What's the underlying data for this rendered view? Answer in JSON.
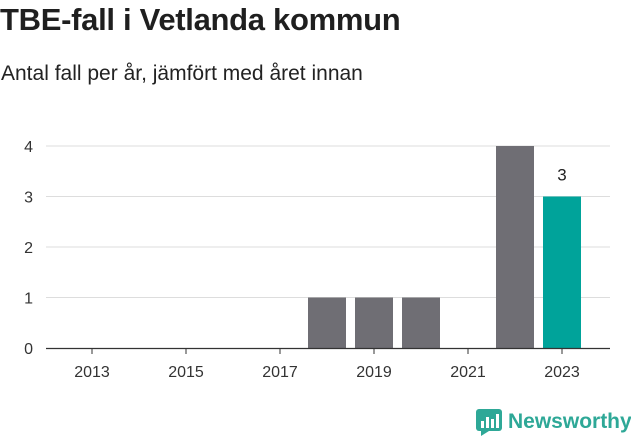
{
  "header": {
    "title": "TBE-fall i Vetlanda kommun",
    "subtitle": "Antal fall per år, jämfört med året innan"
  },
  "brand": {
    "name": "Newsworthy",
    "icon": "newsworthy-logo-icon"
  },
  "colors": {
    "bar": "#6f6e74",
    "highlight": "#00a39a",
    "grid": "#dddddd",
    "axis": "#333333",
    "brand": "#2ea897"
  },
  "chart_data": {
    "type": "bar",
    "title": "TBE-fall i Vetlanda kommun",
    "subtitle": "Antal fall per år, jämfört med året innan",
    "categories": [
      "2013",
      "2014",
      "2015",
      "2016",
      "2017",
      "2018",
      "2019",
      "2020",
      "2021",
      "2022",
      "2023"
    ],
    "values": [
      0,
      0,
      0,
      0,
      0,
      1,
      1,
      1,
      0,
      4,
      3
    ],
    "highlight_category": "2023",
    "data_labels": [
      {
        "category": "2023",
        "text": "3"
      }
    ],
    "x_tick_labels": [
      "2013",
      "2015",
      "2017",
      "2019",
      "2021",
      "2023"
    ],
    "y_ticks": [
      0,
      1,
      2,
      3,
      4
    ],
    "ylim": [
      0,
      4
    ],
    "xlabel": "",
    "ylabel": "",
    "grid": true,
    "legend": "none"
  }
}
